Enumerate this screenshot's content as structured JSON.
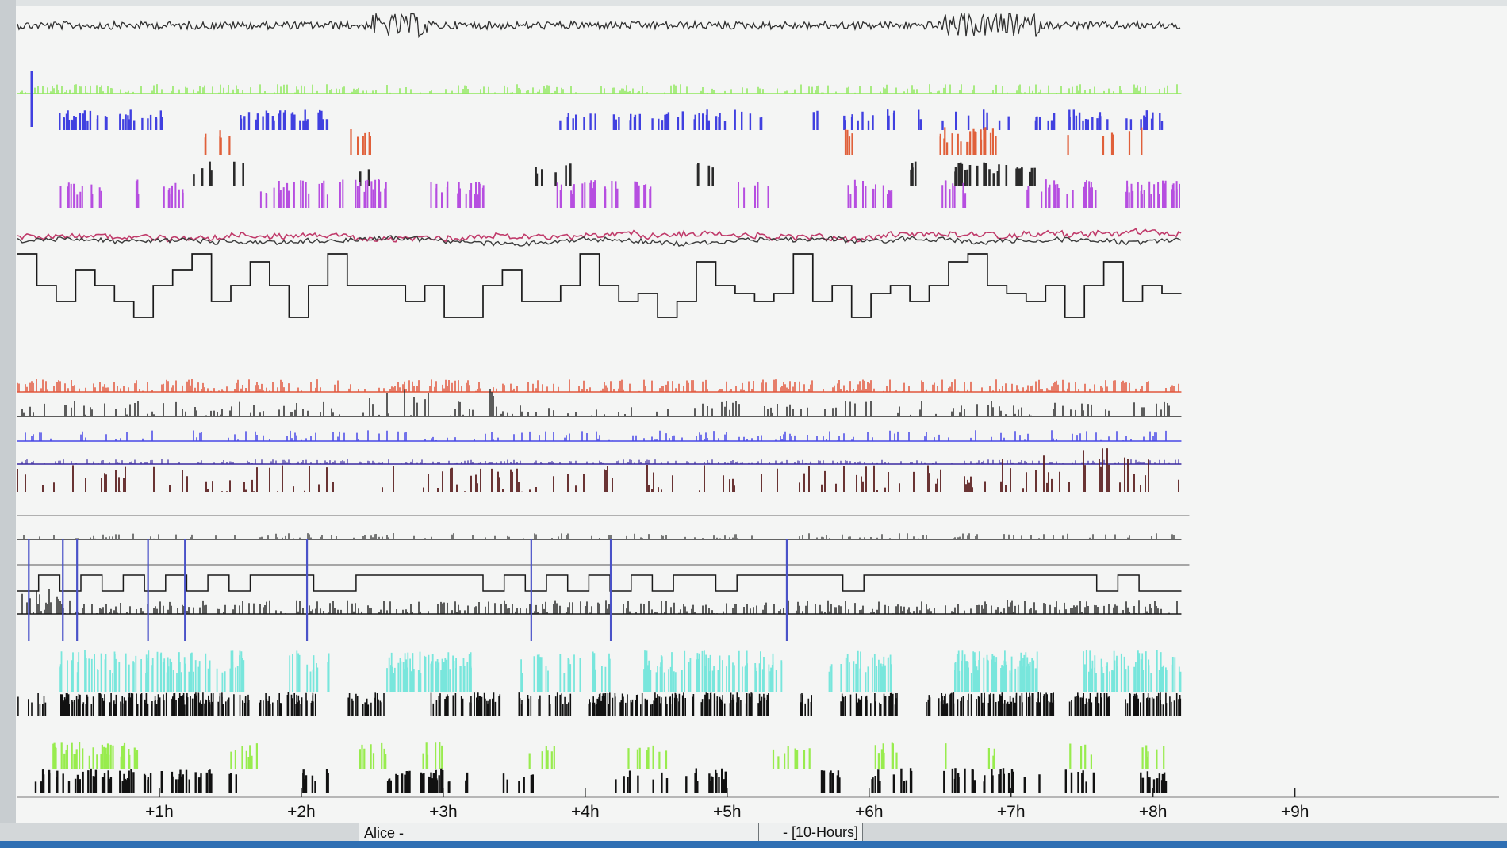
{
  "chart_data": {
    "type": "line",
    "title": "",
    "xlabel": "",
    "ylabel": "",
    "x_axis": {
      "unit": "hours",
      "range": [
        0,
        9.6
      ],
      "ticks": [
        {
          "value": 1,
          "label": "+1h"
        },
        {
          "value": 2,
          "label": "+2h"
        },
        {
          "value": 3,
          "label": "+3h"
        },
        {
          "value": 4,
          "label": "+4h"
        },
        {
          "value": 5,
          "label": "+5h"
        },
        {
          "value": 6,
          "label": "+6h"
        },
        {
          "value": 7,
          "label": "+7h"
        },
        {
          "value": 8,
          "label": "+8h"
        },
        {
          "value": 9,
          "label": "+9h"
        }
      ]
    },
    "data_end_hour": 8.2,
    "grid": false,
    "legend": "none",
    "series_colors": [
      "#2f2f2f",
      "#8fe85c",
      "#4040e0",
      "#e0603a",
      "#2a2a2a",
      "#b64ee0",
      "#c03a6a",
      "#1a1a1a",
      "#e2573d",
      "#2a2a2a",
      "#4646e6",
      "#3a2aa0",
      "#5a1e1e",
      "#333333",
      "#1a1a1a",
      "#4a52c8",
      "#1a1a1a",
      "#78e6dc",
      "#111111",
      "#98ec4e",
      "#111111"
    ]
  },
  "status": {
    "left_label": "Alice -",
    "right_label": "- [10-Hours]"
  }
}
